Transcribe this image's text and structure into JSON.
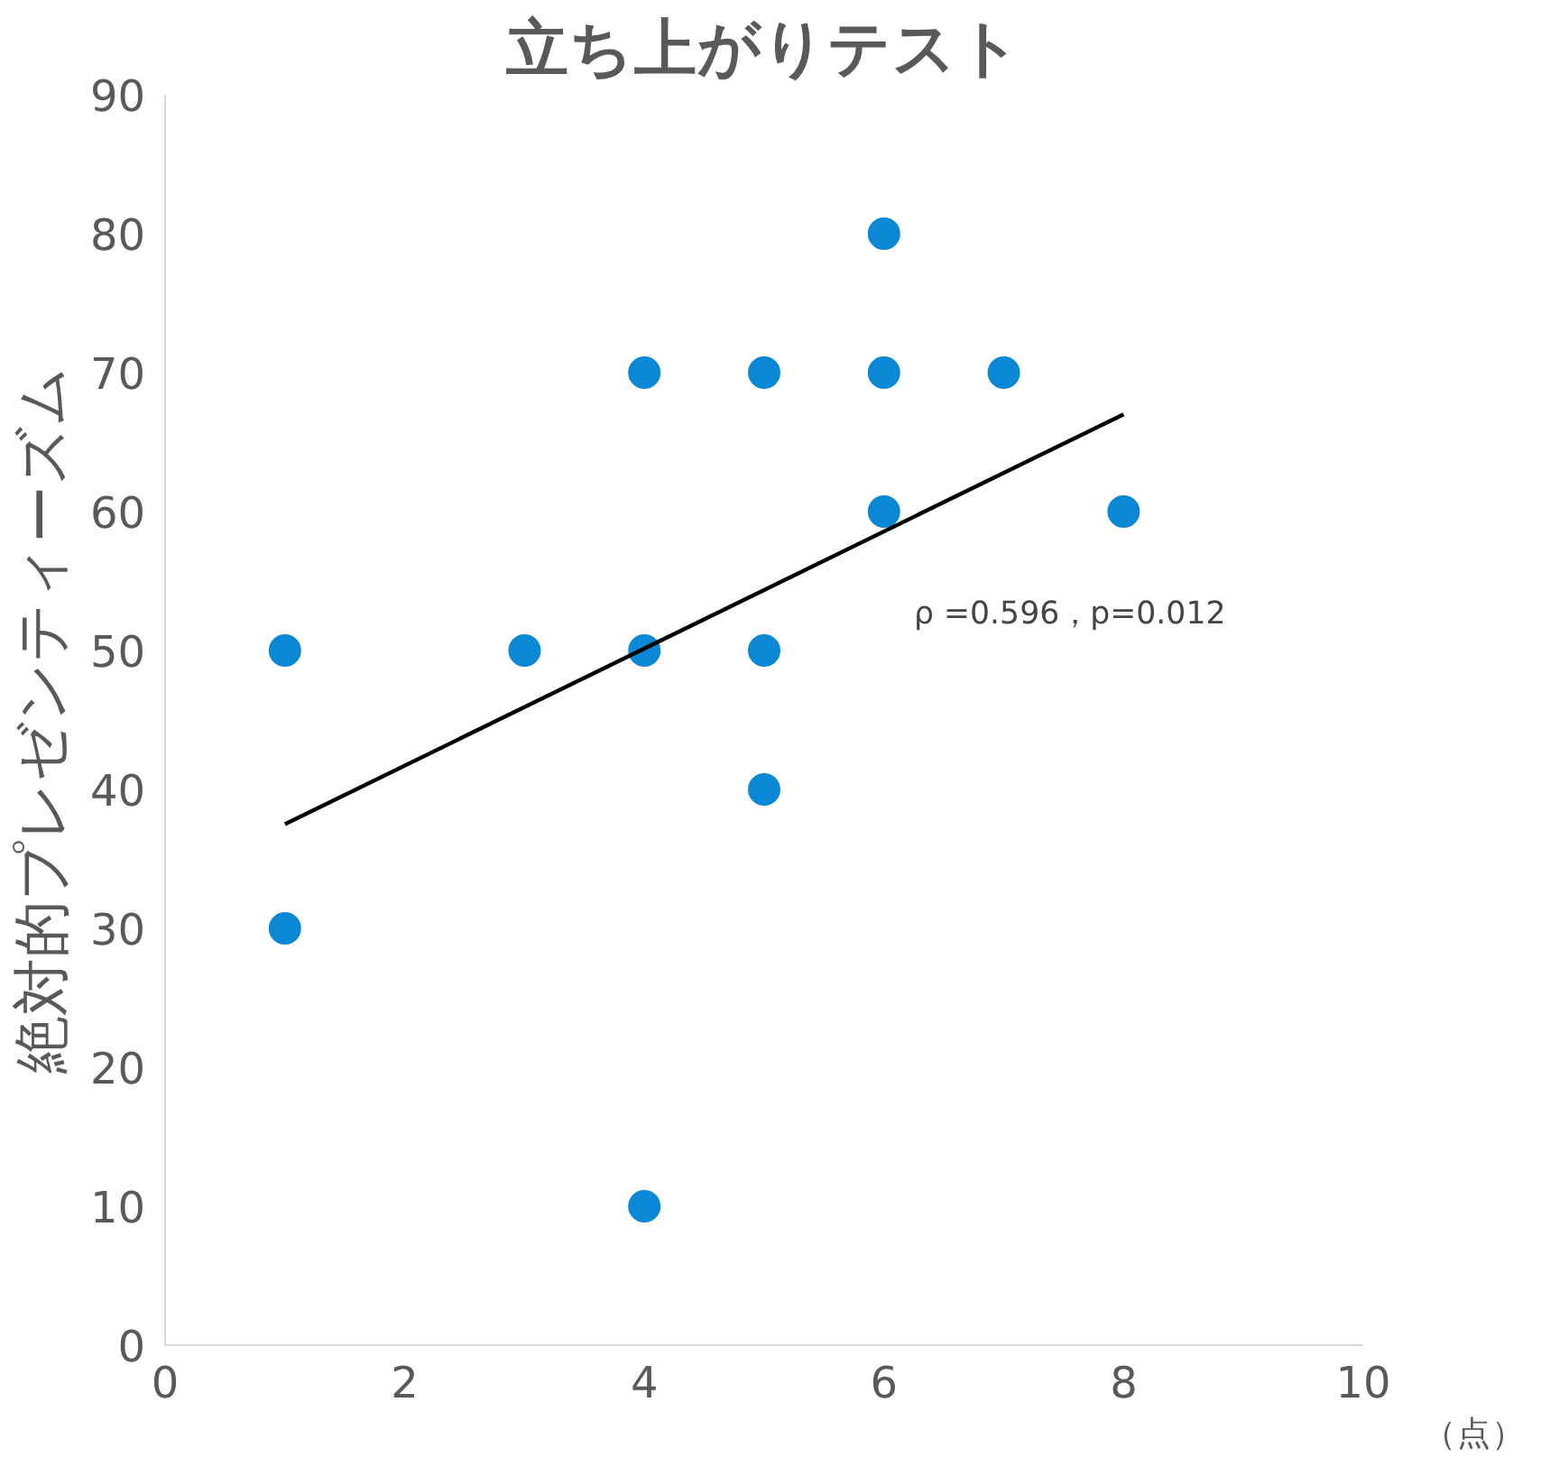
{
  "chart_data": {
    "type": "scatter",
    "title": "立ち上がりテスト",
    "xlabel": "（点）",
    "ylabel": "絶対的プレゼンティーズム",
    "xlim": [
      0,
      10
    ],
    "xticks": [
      0,
      2,
      4,
      6,
      8,
      10
    ],
    "ylim": [
      0,
      90
    ],
    "yticks": [
      0,
      10,
      20,
      30,
      40,
      50,
      60,
      70,
      80,
      90
    ],
    "grid": false,
    "marker": "circle",
    "series": [
      {
        "color": "#0a87d5",
        "x": [
          1,
          1,
          3,
          4,
          4,
          4,
          5,
          5,
          5,
          6,
          6,
          6,
          7,
          8
        ],
        "values": [
          50,
          30,
          50,
          70,
          50,
          10,
          70,
          50,
          40,
          80,
          70,
          60,
          70,
          60
        ]
      },
      {
        "type": "line",
        "color": "#000000",
        "marker": "none",
        "line_style": "solid",
        "x": [
          1,
          8
        ],
        "values": [
          37.5,
          67
        ]
      }
    ],
    "annotations": [
      "ρ =0.596，p=0.012"
    ]
  }
}
